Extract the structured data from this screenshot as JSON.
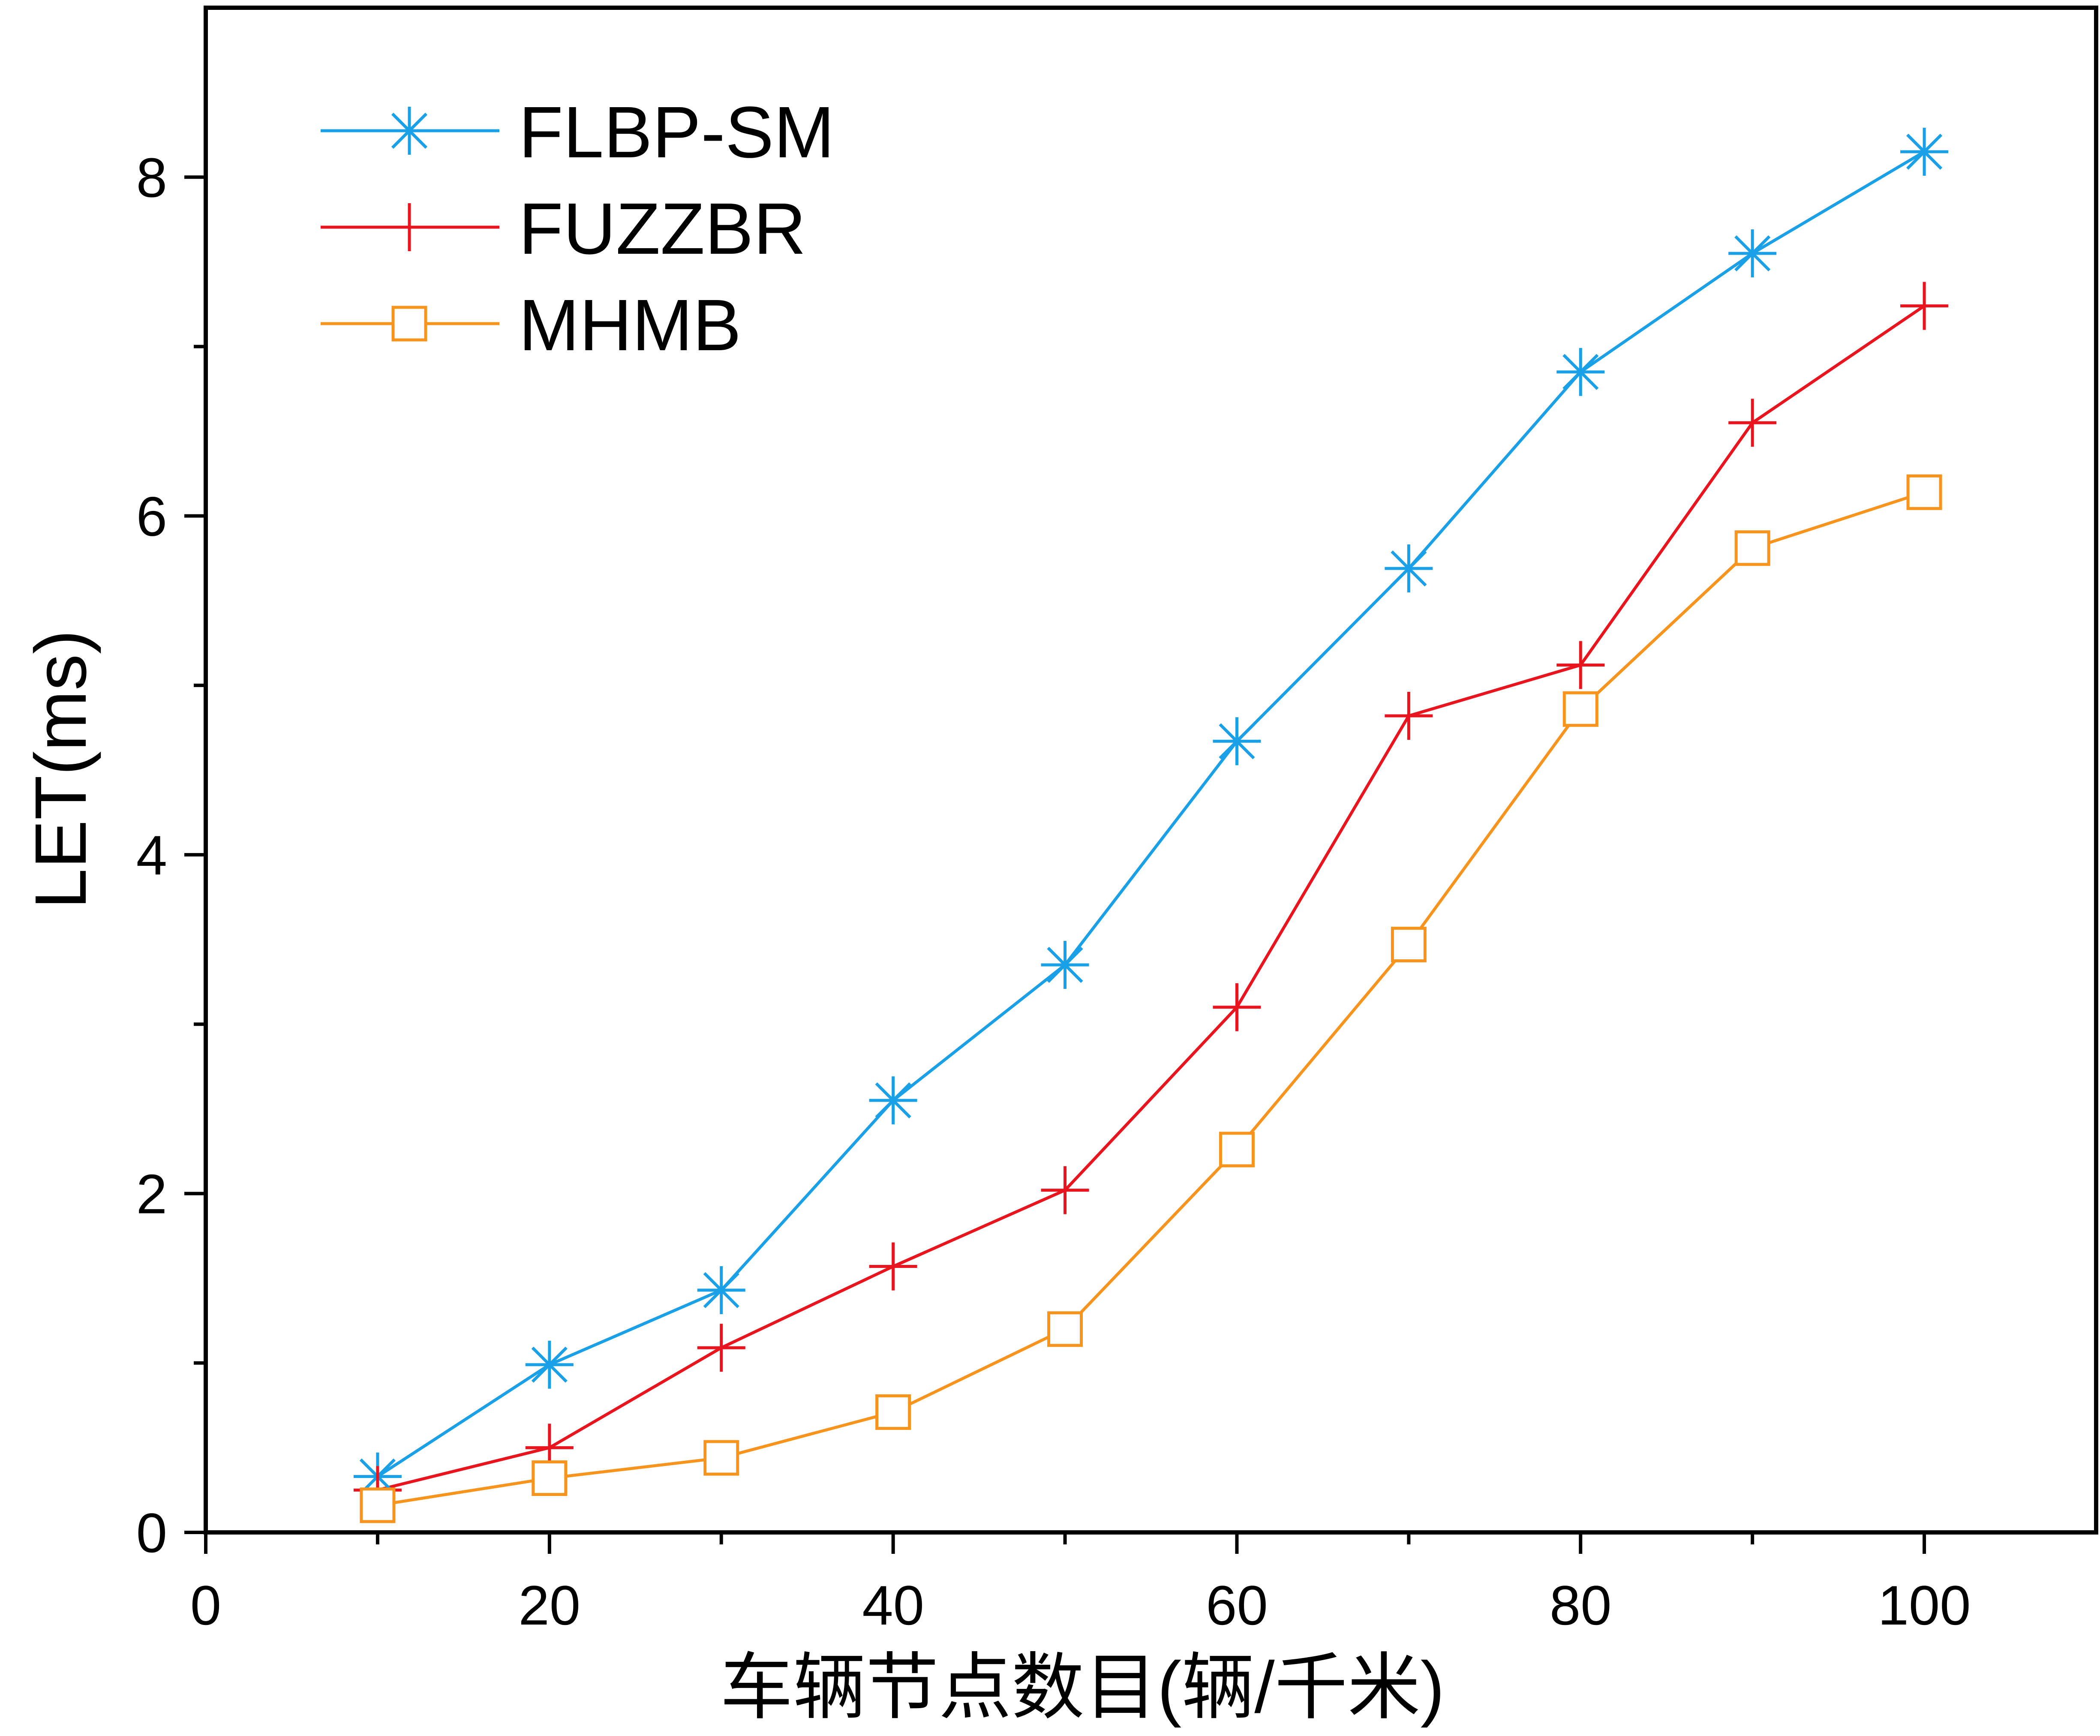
{
  "chart_data": {
    "type": "line",
    "x": [
      10,
      20,
      30,
      40,
      50,
      60,
      70,
      80,
      90,
      100
    ],
    "series": [
      {
        "name": "FLBP-SM",
        "marker": "asterisk",
        "color": "#1aa0e6",
        "values": [
          0.33,
          0.99,
          1.43,
          2.55,
          3.35,
          4.67,
          5.69,
          6.85,
          7.55,
          8.15
        ]
      },
      {
        "name": "FUZZBR",
        "marker": "plus",
        "color": "#e8141e",
        "values": [
          0.25,
          0.5,
          1.09,
          1.57,
          2.02,
          3.1,
          4.82,
          5.12,
          6.55,
          7.24
        ]
      },
      {
        "name": "MHMB",
        "marker": "square",
        "color": "#f7941d",
        "values": [
          0.16,
          0.32,
          0.44,
          0.71,
          1.2,
          2.26,
          3.47,
          4.86,
          5.81,
          6.14
        ]
      }
    ],
    "xlabel": "车辆节点数目(辆/千米)",
    "ylabel": "LET(ms)",
    "xlim": [
      0,
      110
    ],
    "ylim": [
      0,
      9
    ],
    "xticks": [
      0,
      20,
      40,
      60,
      80,
      100
    ],
    "yticks": [
      0,
      2,
      4,
      6,
      8
    ],
    "xtick_labels": [
      "0",
      "20",
      "40",
      "60",
      "80",
      "100"
    ],
    "ytick_labels": [
      "0",
      "2",
      "4",
      "6",
      "8"
    ],
    "grid": false,
    "legend_position": "top-left"
  }
}
